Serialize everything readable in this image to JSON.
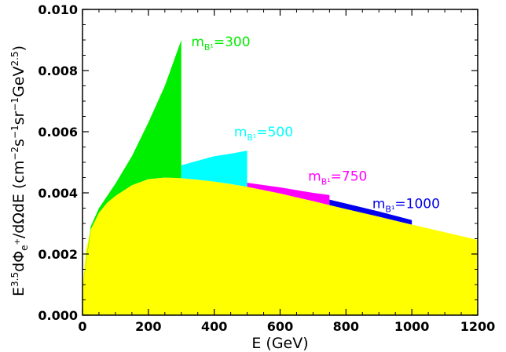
{
  "chart_data": {
    "type": "area",
    "xlabel": "E (GeV)",
    "ylabel_parts": {
      "main": "E",
      "exp": "3.5",
      "phi": "dΦ",
      "phi_sub": "e",
      "phi_sup": "+",
      "denom": "/dΩdE (cm",
      "u1": "−2",
      "u2": "s",
      "u3": "−1",
      "u4": "sr",
      "u5": "−1",
      "u6": "GeV",
      "u7": "2.5",
      "close": ")"
    },
    "xlim": [
      0,
      1200
    ],
    "ylim": [
      0,
      0.01
    ],
    "x_ticks": [
      0,
      200,
      400,
      600,
      800,
      1000,
      1200
    ],
    "x_tick_labels": [
      "0",
      "200",
      "400",
      "600",
      "800",
      "1000",
      "1200"
    ],
    "y_ticks": [
      0,
      0.002,
      0.004,
      0.006,
      0.008,
      0.01
    ],
    "y_tick_labels": [
      "0.000",
      "0.002",
      "0.004",
      "0.006",
      "0.008",
      "0.010"
    ],
    "background": {
      "name": "",
      "color": "#ffff00",
      "x": [
        0,
        10,
        25,
        50,
        75,
        100,
        150,
        200,
        250,
        300,
        400,
        500,
        600,
        700,
        800,
        900,
        1000,
        1100,
        1200
      ],
      "y": [
        0.0008,
        0.0021,
        0.0028,
        0.00335,
        0.00368,
        0.0039,
        0.00425,
        0.00445,
        0.0045,
        0.00448,
        0.00437,
        0.0042,
        0.00398,
        0.00373,
        0.00347,
        0.00322,
        0.00296,
        0.00271,
        0.00246
      ]
    },
    "series": [
      {
        "label_main": "m",
        "label_sub": "B¹",
        "label_value": "=300",
        "color": "#00ee00",
        "x": [
          0,
          25,
          50,
          75,
          100,
          150,
          200,
          250,
          300
        ],
        "y_bottom": [
          0.0008,
          0.0028,
          0.00335,
          0.00368,
          0.0039,
          0.00425,
          0.00445,
          0.0045,
          0.00448
        ],
        "y_top": [
          0.0008,
          0.0029,
          0.0035,
          0.0039,
          0.0043,
          0.0052,
          0.0063,
          0.0075,
          0.009
        ],
        "y_drop": 0.0049
      },
      {
        "label_main": "m",
        "label_sub": "B¹",
        "label_value": "=500",
        "color": "#00ffff",
        "x": [
          300,
          350,
          400,
          450,
          500
        ],
        "y_bottom": [
          0.00448,
          0.00443,
          0.00437,
          0.00429,
          0.0042
        ],
        "y_top": [
          0.0049,
          0.00505,
          0.0052,
          0.00528,
          0.00538
        ],
        "y_drop": 0.00433
      },
      {
        "label_main": "m",
        "label_sub": "B¹",
        "label_value": "=750",
        "color": "#ff00ff",
        "x": [
          500,
          600,
          700,
          750
        ],
        "y_bottom": [
          0.0042,
          0.00398,
          0.00373,
          0.0036
        ],
        "y_top": [
          0.00433,
          0.00418,
          0.004,
          0.00393
        ],
        "y_drop": 0.00378
      },
      {
        "label_main": "m",
        "label_sub": "B¹",
        "label_value": "=1000",
        "color": "#0000ee",
        "x": [
          750,
          800,
          900,
          1000
        ],
        "y_bottom": [
          0.0036,
          0.00347,
          0.00322,
          0.00296
        ],
        "y_top": [
          0.00378,
          0.00365,
          0.00339,
          0.00311
        ],
        "y_drop": 0.00311
      }
    ],
    "grid": false,
    "legend": "inline"
  }
}
